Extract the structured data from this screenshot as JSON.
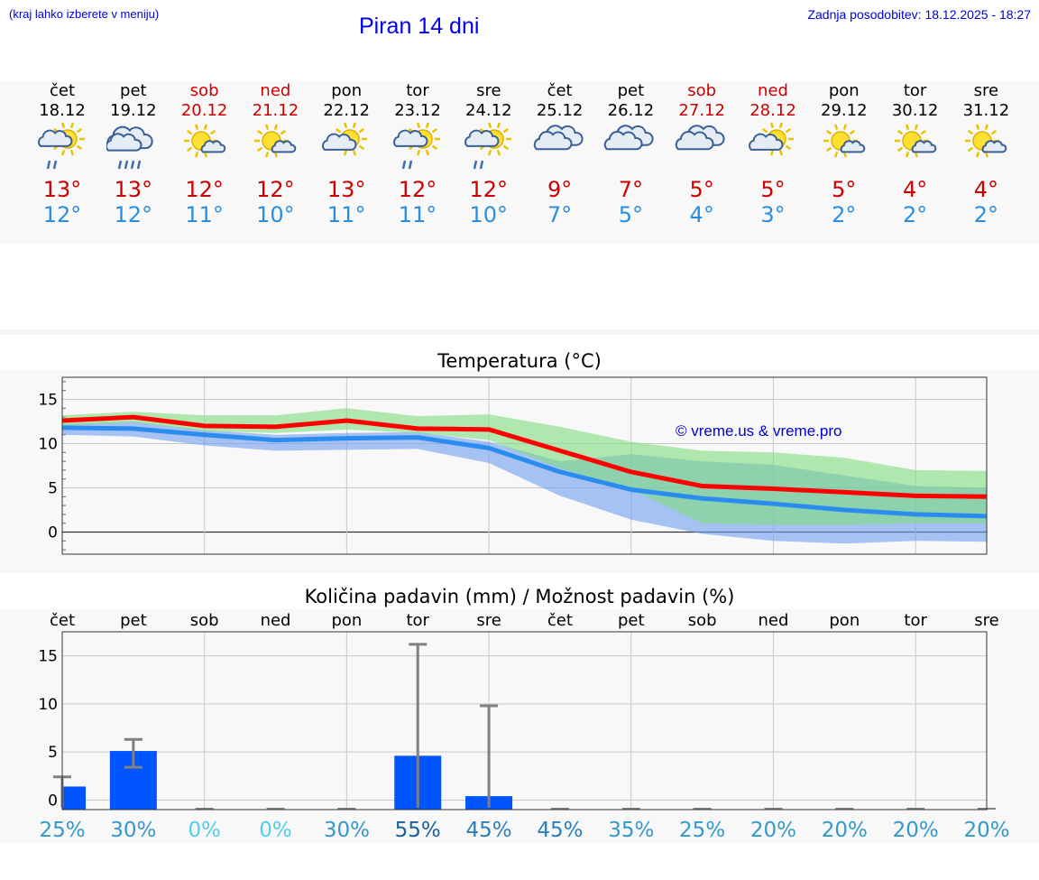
{
  "header": {
    "hint": "(kraj lahko izberete v meniju)",
    "title": "Piran 14 dni",
    "update": "Zadnja posodobitev: 18.12.2025 - 18:27"
  },
  "days": [
    {
      "name": "čet",
      "date": "18.12",
      "max": "13°",
      "min": "12°",
      "icon": "partly-sunny-rain-icon",
      "weekend": false
    },
    {
      "name": "pet",
      "date": "19.12",
      "max": "13°",
      "min": "12°",
      "icon": "cloud-rain-icon",
      "weekend": false
    },
    {
      "name": "sob",
      "date": "20.12",
      "max": "12°",
      "min": "11°",
      "icon": "sun-small-cloud-icon",
      "weekend": true
    },
    {
      "name": "ned",
      "date": "21.12",
      "max": "12°",
      "min": "10°",
      "icon": "sun-small-cloud-icon",
      "weekend": true
    },
    {
      "name": "pon",
      "date": "22.12",
      "max": "13°",
      "min": "11°",
      "icon": "partly-cloudy-icon",
      "weekend": false
    },
    {
      "name": "tor",
      "date": "23.12",
      "max": "12°",
      "min": "11°",
      "icon": "partly-sunny-rain-icon",
      "weekend": false
    },
    {
      "name": "sre",
      "date": "24.12",
      "max": "12°",
      "min": "10°",
      "icon": "partly-sunny-rain-icon",
      "weekend": false
    },
    {
      "name": "čet",
      "date": "25.12",
      "max": "9°",
      "min": "7°",
      "icon": "cloudy-icon",
      "weekend": false
    },
    {
      "name": "pet",
      "date": "26.12",
      "max": "7°",
      "min": "5°",
      "icon": "cloudy-icon",
      "weekend": false
    },
    {
      "name": "sob",
      "date": "27.12",
      "max": "5°",
      "min": "4°",
      "icon": "cloudy-icon",
      "weekend": true
    },
    {
      "name": "ned",
      "date": "28.12",
      "max": "5°",
      "min": "3°",
      "icon": "partly-cloudy-icon",
      "weekend": true
    },
    {
      "name": "pon",
      "date": "29.12",
      "max": "5°",
      "min": "2°",
      "icon": "sun-small-cloud-icon",
      "weekend": false
    },
    {
      "name": "tor",
      "date": "30.12",
      "max": "4°",
      "min": "2°",
      "icon": "sun-small-cloud-icon",
      "weekend": false
    },
    {
      "name": "sre",
      "date": "31.12",
      "max": "4°",
      "min": "2°",
      "icon": "sun-small-cloud-icon",
      "weekend": false
    }
  ],
  "copyright": "© vreme.us & vreme.pro",
  "colors": {
    "max_line": "#ff0000",
    "min_line": "#2b8cf0",
    "green_band": "#7fdc7f",
    "blue_band": "#6f9ff0",
    "bar": "#0055ff",
    "weekend": "#cc0000"
  },
  "chart_data": [
    {
      "type": "line",
      "title": "Temperatura (°C)",
      "ylim": [
        -2.5,
        17.5
      ],
      "yticks": [
        0,
        5,
        10,
        15
      ],
      "x": [
        0,
        1,
        2,
        3,
        4,
        5,
        6,
        7,
        8,
        9,
        10,
        11,
        12,
        13
      ],
      "series": [
        {
          "name": "max",
          "values": [
            12.6,
            13.0,
            12.0,
            11.9,
            12.6,
            11.7,
            11.6,
            9.2,
            6.8,
            5.2,
            4.9,
            4.5,
            4.1,
            4.0
          ]
        },
        {
          "name": "min",
          "values": [
            11.8,
            11.7,
            11.0,
            10.4,
            10.6,
            10.7,
            9.5,
            6.8,
            4.8,
            3.8,
            3.2,
            2.5,
            2.0,
            1.8
          ]
        }
      ],
      "max_band": {
        "upper": [
          13.2,
          13.6,
          13.2,
          13.2,
          14.0,
          13.1,
          13.3,
          11.9,
          10.2,
          9.2,
          9.0,
          8.4,
          7.0,
          6.9
        ],
        "lower": [
          12.0,
          12.4,
          11.4,
          11.2,
          11.6,
          11.2,
          10.4,
          7.2,
          4.8,
          1.0,
          0.8,
          0.8,
          1.0,
          1.0
        ]
      },
      "min_band": {
        "upper": [
          12.2,
          12.5,
          11.5,
          11.0,
          11.2,
          11.3,
          10.2,
          8.0,
          8.8,
          8.0,
          7.6,
          6.4,
          5.2,
          5.0
        ],
        "lower": [
          11.0,
          10.8,
          9.8,
          9.2,
          9.3,
          9.4,
          7.8,
          4.1,
          1.4,
          -0.2,
          -1.0,
          -1.3,
          -1.0,
          -1.1
        ]
      }
    },
    {
      "type": "bar",
      "title": "Količina padavin (mm) / Možnost padavin (%)",
      "ylim": [
        -1.0,
        17.5
      ],
      "yticks": [
        0,
        5,
        10,
        15
      ],
      "categories": [
        "čet",
        "pet",
        "sob",
        "ned",
        "pon",
        "tor",
        "sre",
        "čet",
        "pet",
        "sob",
        "ned",
        "pon",
        "tor",
        "sre"
      ],
      "values": [
        1.4,
        5.1,
        0,
        0,
        0,
        4.6,
        0.4,
        0,
        0,
        0,
        0,
        0,
        0,
        0
      ],
      "error_high": [
        2.4,
        6.3,
        0,
        0,
        0,
        16.2,
        9.8,
        0,
        0,
        0,
        0,
        0,
        0,
        0
      ],
      "error_low": [
        0,
        3.4,
        0,
        0,
        0,
        0,
        0,
        0,
        0,
        0,
        0,
        0,
        0,
        0
      ],
      "probability": [
        "25%",
        "30%",
        "0%",
        "0%",
        "30%",
        "55%",
        "45%",
        "45%",
        "35%",
        "25%",
        "20%",
        "20%",
        "20%",
        "20%"
      ],
      "probability_colors": [
        "#3399cc",
        "#3399cc",
        "#55ccee",
        "#55ccee",
        "#3399cc",
        "#1a5f9e",
        "#2a7fbf",
        "#2a7fbf",
        "#3399cc",
        "#3399cc",
        "#3399cc",
        "#3399cc",
        "#3399cc",
        "#3399cc"
      ]
    }
  ]
}
